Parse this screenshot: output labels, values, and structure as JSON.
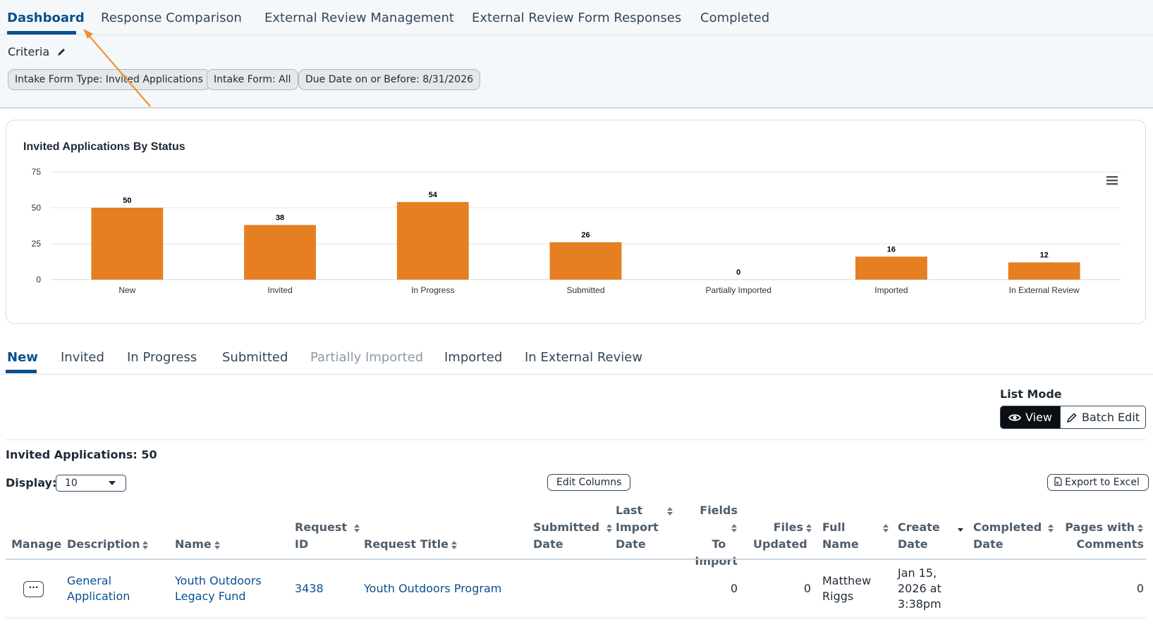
{
  "tabs": [
    "Dashboard",
    "Response Comparison",
    "External Review Management",
    "External Review Form Responses",
    "Completed"
  ],
  "criteria": {
    "label": "Criteria",
    "pills": [
      "Intake Form Type: Invited Applications",
      "Intake Form: All",
      "Due Date on or Before: 8/31/2026"
    ]
  },
  "chart_data": {
    "type": "bar",
    "title": "Invited Applications By Status",
    "categories": [
      "New",
      "Invited",
      "In Progress",
      "Submitted",
      "Partially Imported",
      "Imported",
      "In External Review"
    ],
    "values": [
      50,
      38,
      54,
      26,
      0,
      16,
      12
    ],
    "yticks": [
      0,
      25,
      50,
      75
    ],
    "ylim": [
      0,
      75
    ],
    "color": "#e67e22",
    "grid": true
  },
  "status_tabs": [
    "New",
    "Invited",
    "In Progress",
    "Submitted",
    "Partially Imported",
    "Imported",
    "In External Review"
  ],
  "list_mode": {
    "label": "List Mode",
    "view": "View",
    "batch_edit": "Batch Edit"
  },
  "count_text": "Invited Applications: 50",
  "display": {
    "label": "Display:",
    "value": "10"
  },
  "edit_columns": "Edit Columns",
  "export": "Export to Excel",
  "columns": {
    "manage": "Manage",
    "description": "Description",
    "name": "Name",
    "request_id_1": "Request",
    "request_id_2": "ID",
    "request_title": "Request Title",
    "submitted_1": "Submitted",
    "submitted_2": "Date",
    "last_import_1": "Last",
    "last_import_2": "Import",
    "last_import_3": "Date",
    "fields_1": "Fields",
    "fields_2": "To",
    "fields_3": "Import",
    "files_1": "Files",
    "files_2": "Updated",
    "full_name_1": "Full",
    "full_name_2": "Name",
    "create_1": "Create",
    "create_2": "Date",
    "completed_1": "Completed",
    "completed_2": "Date",
    "pages_1": "Pages with",
    "pages_2": "Comments"
  },
  "row": {
    "manage": "···",
    "description_1": "General",
    "description_2": "Application",
    "name_1": "Youth Outdoors",
    "name_2": "Legacy Fund",
    "request_id": "3438",
    "request_title": "Youth Outdoors Program",
    "fields_to_import": "0",
    "files_updated": "0",
    "full_name_1": "Matthew",
    "full_name_2": "Riggs",
    "create_1": "Jan 15,",
    "create_2": "2026 at",
    "create_3": "3:38pm",
    "pages_with_comments": "0"
  }
}
